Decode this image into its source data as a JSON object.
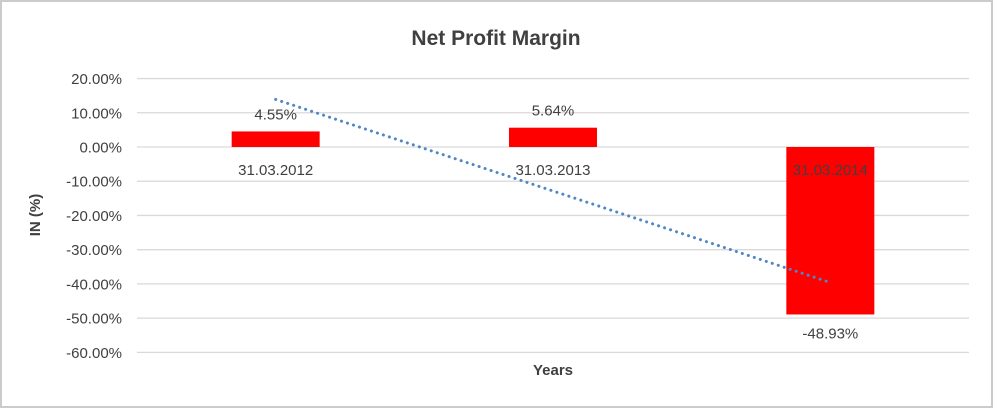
{
  "window": {
    "background": "#ffffff",
    "border_color": "#cbcbcb"
  },
  "chart_data": {
    "type": "bar",
    "title": "Net Profit Margin",
    "xlabel": "Years",
    "ylabel": "IN (%)",
    "categories": [
      "31.03.2012",
      "31.03.2013",
      "31.03.2014"
    ],
    "values": [
      4.55,
      5.64,
      -48.93
    ],
    "data_labels": [
      "4.55%",
      "5.64%",
      "-48.93%"
    ],
    "ylim": [
      -60,
      20
    ],
    "y_tick_values": [
      20,
      10,
      0,
      -10,
      -20,
      -30,
      -40,
      -50,
      -60
    ],
    "y_tick_labels": [
      "20.00%",
      "10.00%",
      "0.00%",
      "-10.00%",
      "-20.00%",
      "-30.00%",
      "-40.00%",
      "-50.00%",
      "-60.00%"
    ],
    "grid": true,
    "legend": "none",
    "bar_color": "#FF0000",
    "gridline_color": "#D9D9D9",
    "text_color": "#404040",
    "trendline": {
      "type": "linear",
      "style": "dotted",
      "color": "#4F87C5",
      "points": [
        {
          "category_index": 0,
          "value": 13.9
        },
        {
          "category_index": 2,
          "value": -39.6
        }
      ]
    }
  }
}
